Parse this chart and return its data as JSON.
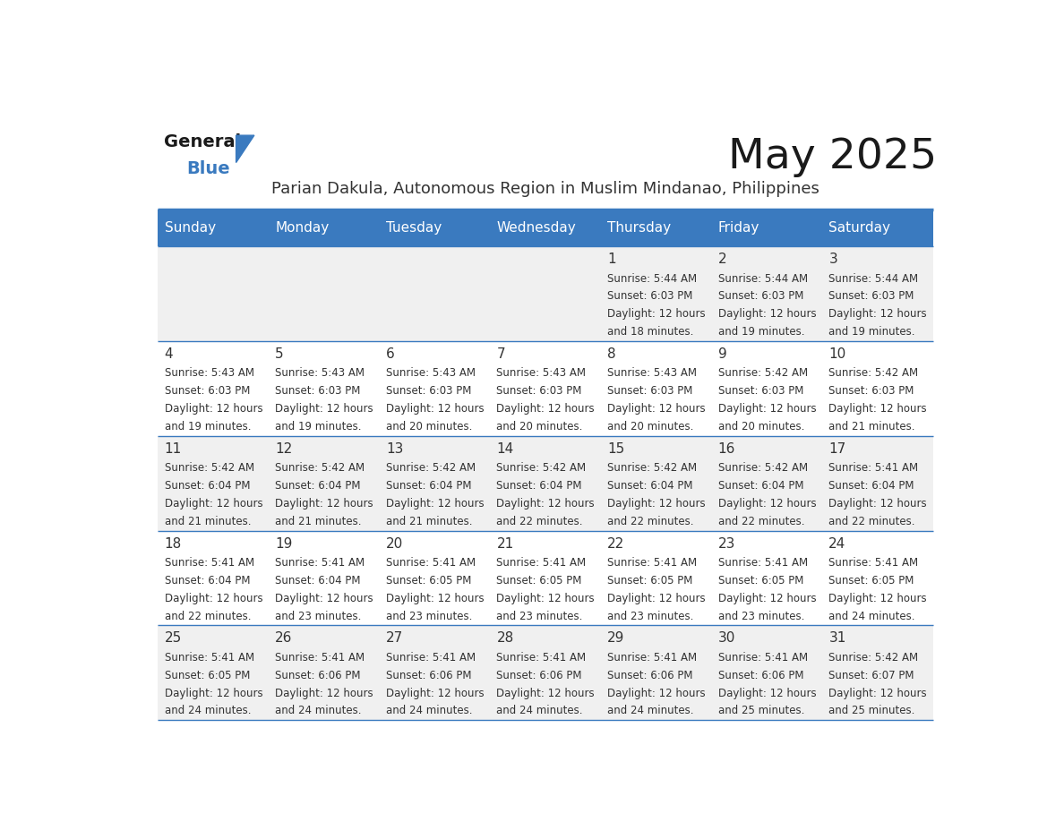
{
  "title": "May 2025",
  "subtitle": "Parian Dakula, Autonomous Region in Muslim Mindanao, Philippines",
  "header_bg_color": "#3a7abf",
  "header_text_color": "#ffffff",
  "day_names": [
    "Sunday",
    "Monday",
    "Tuesday",
    "Wednesday",
    "Thursday",
    "Friday",
    "Saturday"
  ],
  "odd_row_bg": "#f0f0f0",
  "even_row_bg": "#ffffff",
  "text_color": "#333333",
  "date_color": "#333333",
  "line_color": "#3a7abf",
  "logo_general_color": "#1a1a1a",
  "logo_blue_color": "#3a7abf",
  "calendar": [
    [
      {
        "date": "",
        "sunrise": "",
        "sunset": "",
        "daylight": ""
      },
      {
        "date": "",
        "sunrise": "",
        "sunset": "",
        "daylight": ""
      },
      {
        "date": "",
        "sunrise": "",
        "sunset": "",
        "daylight": ""
      },
      {
        "date": "",
        "sunrise": "",
        "sunset": "",
        "daylight": ""
      },
      {
        "date": "1",
        "sunrise": "5:44 AM",
        "sunset": "6:03 PM",
        "daylight": "12 hours and 18 minutes."
      },
      {
        "date": "2",
        "sunrise": "5:44 AM",
        "sunset": "6:03 PM",
        "daylight": "12 hours and 19 minutes."
      },
      {
        "date": "3",
        "sunrise": "5:44 AM",
        "sunset": "6:03 PM",
        "daylight": "12 hours and 19 minutes."
      }
    ],
    [
      {
        "date": "4",
        "sunrise": "5:43 AM",
        "sunset": "6:03 PM",
        "daylight": "12 hours and 19 minutes."
      },
      {
        "date": "5",
        "sunrise": "5:43 AM",
        "sunset": "6:03 PM",
        "daylight": "12 hours and 19 minutes."
      },
      {
        "date": "6",
        "sunrise": "5:43 AM",
        "sunset": "6:03 PM",
        "daylight": "12 hours and 20 minutes."
      },
      {
        "date": "7",
        "sunrise": "5:43 AM",
        "sunset": "6:03 PM",
        "daylight": "12 hours and 20 minutes."
      },
      {
        "date": "8",
        "sunrise": "5:43 AM",
        "sunset": "6:03 PM",
        "daylight": "12 hours and 20 minutes."
      },
      {
        "date": "9",
        "sunrise": "5:42 AM",
        "sunset": "6:03 PM",
        "daylight": "12 hours and 20 minutes."
      },
      {
        "date": "10",
        "sunrise": "5:42 AM",
        "sunset": "6:03 PM",
        "daylight": "12 hours and 21 minutes."
      }
    ],
    [
      {
        "date": "11",
        "sunrise": "5:42 AM",
        "sunset": "6:04 PM",
        "daylight": "12 hours and 21 minutes."
      },
      {
        "date": "12",
        "sunrise": "5:42 AM",
        "sunset": "6:04 PM",
        "daylight": "12 hours and 21 minutes."
      },
      {
        "date": "13",
        "sunrise": "5:42 AM",
        "sunset": "6:04 PM",
        "daylight": "12 hours and 21 minutes."
      },
      {
        "date": "14",
        "sunrise": "5:42 AM",
        "sunset": "6:04 PM",
        "daylight": "12 hours and 22 minutes."
      },
      {
        "date": "15",
        "sunrise": "5:42 AM",
        "sunset": "6:04 PM",
        "daylight": "12 hours and 22 minutes."
      },
      {
        "date": "16",
        "sunrise": "5:42 AM",
        "sunset": "6:04 PM",
        "daylight": "12 hours and 22 minutes."
      },
      {
        "date": "17",
        "sunrise": "5:41 AM",
        "sunset": "6:04 PM",
        "daylight": "12 hours and 22 minutes."
      }
    ],
    [
      {
        "date": "18",
        "sunrise": "5:41 AM",
        "sunset": "6:04 PM",
        "daylight": "12 hours and 22 minutes."
      },
      {
        "date": "19",
        "sunrise": "5:41 AM",
        "sunset": "6:04 PM",
        "daylight": "12 hours and 23 minutes."
      },
      {
        "date": "20",
        "sunrise": "5:41 AM",
        "sunset": "6:05 PM",
        "daylight": "12 hours and 23 minutes."
      },
      {
        "date": "21",
        "sunrise": "5:41 AM",
        "sunset": "6:05 PM",
        "daylight": "12 hours and 23 minutes."
      },
      {
        "date": "22",
        "sunrise": "5:41 AM",
        "sunset": "6:05 PM",
        "daylight": "12 hours and 23 minutes."
      },
      {
        "date": "23",
        "sunrise": "5:41 AM",
        "sunset": "6:05 PM",
        "daylight": "12 hours and 23 minutes."
      },
      {
        "date": "24",
        "sunrise": "5:41 AM",
        "sunset": "6:05 PM",
        "daylight": "12 hours and 24 minutes."
      }
    ],
    [
      {
        "date": "25",
        "sunrise": "5:41 AM",
        "sunset": "6:05 PM",
        "daylight": "12 hours and 24 minutes."
      },
      {
        "date": "26",
        "sunrise": "5:41 AM",
        "sunset": "6:06 PM",
        "daylight": "12 hours and 24 minutes."
      },
      {
        "date": "27",
        "sunrise": "5:41 AM",
        "sunset": "6:06 PM",
        "daylight": "12 hours and 24 minutes."
      },
      {
        "date": "28",
        "sunrise": "5:41 AM",
        "sunset": "6:06 PM",
        "daylight": "12 hours and 24 minutes."
      },
      {
        "date": "29",
        "sunrise": "5:41 AM",
        "sunset": "6:06 PM",
        "daylight": "12 hours and 24 minutes."
      },
      {
        "date": "30",
        "sunrise": "5:41 AM",
        "sunset": "6:06 PM",
        "daylight": "12 hours and 25 minutes."
      },
      {
        "date": "31",
        "sunrise": "5:42 AM",
        "sunset": "6:07 PM",
        "daylight": "12 hours and 25 minutes."
      }
    ]
  ]
}
